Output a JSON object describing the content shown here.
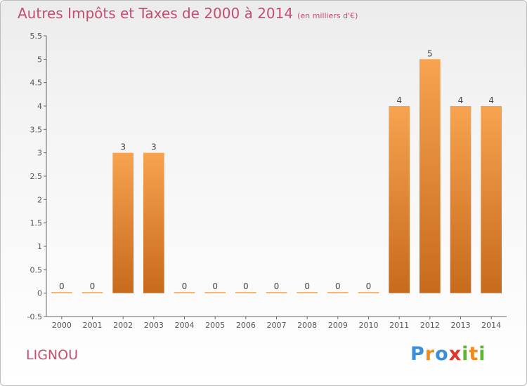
{
  "chart_data": {
    "type": "bar",
    "title": "Autres Impôts et Taxes de 2000 à 2014",
    "unit_label": "(en milliers d'€)",
    "categories": [
      "2000",
      "2001",
      "2002",
      "2003",
      "2004",
      "2005",
      "2006",
      "2007",
      "2008",
      "2009",
      "2010",
      "2011",
      "2012",
      "2013",
      "2014"
    ],
    "values": [
      0,
      0,
      3,
      3,
      0,
      0,
      0,
      0,
      0,
      0,
      0,
      4,
      5,
      4,
      4
    ],
    "data_labels": [
      "0",
      "0",
      "3",
      "3",
      "0",
      "0",
      "0",
      "0",
      "0",
      "0",
      "0",
      "4",
      "5",
      "4",
      "4"
    ],
    "y_ticks": [
      -0.5,
      0,
      0.5,
      1,
      1.5,
      2,
      2.5,
      3,
      3.5,
      4,
      4.5,
      5,
      5.5
    ],
    "y_tick_labels": [
      "-0.5",
      "0",
      "0.5",
      "1",
      "1.5",
      "2",
      "2.5",
      "3",
      "3.5",
      "4",
      "4.5",
      "5",
      "5.5"
    ],
    "ylim": [
      -0.5,
      5.5
    ],
    "grid": false,
    "bar_color_top": "#f7a350",
    "bar_color_bottom": "#c76a1c",
    "xlabel": "",
    "ylabel": ""
  },
  "footer": {
    "commune": "LIGNOU",
    "logo_letters": [
      "P",
      "r",
      "o",
      "x",
      "i",
      "t",
      "i"
    ],
    "logo_colors": [
      "#3b8fd8",
      "#f08a1c",
      "#3b8fd8",
      "#e0342c",
      "#5cb82e",
      "#f08a1c",
      "#5cb82e"
    ]
  }
}
